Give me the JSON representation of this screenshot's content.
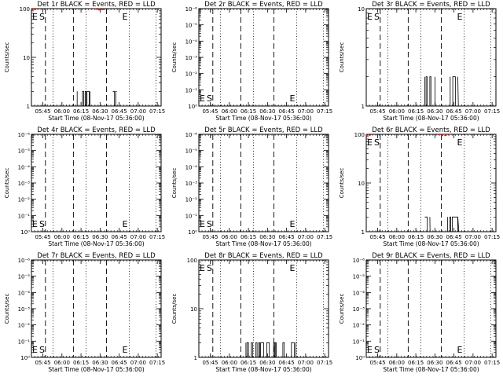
{
  "figure": {
    "bg": "#ffffff",
    "fg": "#000000",
    "lld_color": "#ff0000"
  },
  "common": {
    "x_tick_labels": [
      "05:45",
      "06:00",
      "06:15",
      "06:30",
      "06:45",
      "07:00",
      "07:15"
    ],
    "x_tick_times": [
      "05:45",
      "06:00",
      "06:15",
      "06:30",
      "06:45",
      "07:00",
      "07:15"
    ],
    "xlim": [
      "05:36",
      "07:18"
    ],
    "xlabel": "Start Time (08-Nov-17 05:36:00)",
    "ylabel": "Counts/sec",
    "marker_start": "S",
    "marker_end": "E",
    "dotted_lines": [
      "05:36",
      "05:53",
      "06:19",
      "06:53",
      "07:14"
    ],
    "dashed_lines": [
      "05:47",
      "06:09",
      "06:35"
    ]
  },
  "chart_data": [
    {
      "type": "line",
      "title": "Det 1r BLACK = Events, RED = LLD",
      "y_scale": "log",
      "ylim": [
        1,
        100
      ],
      "y_ticks": [
        {
          "v": 1,
          "label": "1"
        },
        {
          "v": 10,
          "label": "10"
        },
        {
          "v": 100,
          "label": "100"
        }
      ],
      "S_pos": "high",
      "E_pos": "high",
      "series": [
        {
          "color": "black",
          "segments": [
            [
              "06:12",
              "06:22"
            ],
            [
              "06:40",
              "06:43"
            ]
          ],
          "level_low": 1,
          "level_high": 2
        },
        {
          "color": "red",
          "segments": [
            [
              "05:36",
              "05:40"
            ],
            [
              "06:26",
              "06:34"
            ]
          ],
          "level_low": 90,
          "level_high": 100
        }
      ]
    },
    {
      "type": "line",
      "title": "Det 2r BLACK = Events, RED = LLD",
      "y_scale": "log",
      "ylim": [
        1,
        1000000
      ],
      "y_ticks": [
        {
          "v": 1,
          "label": "10⁰"
        },
        {
          "v": 10,
          "label": "10⁻¹"
        },
        {
          "v": 100,
          "label": "10⁻²"
        },
        {
          "v": 1000,
          "label": "10⁻³"
        },
        {
          "v": 10000,
          "label": "10⁻⁴"
        },
        {
          "v": 100000,
          "label": "10⁻⁵"
        },
        {
          "v": 1000000,
          "label": "10⁻⁶"
        }
      ],
      "S_pos": "low",
      "E_pos": "low",
      "series": []
    },
    {
      "type": "line",
      "title": "Det 3r BLACK = Events, RED = LLD",
      "y_scale": "log",
      "ylim": [
        1,
        10
      ],
      "y_ticks": [
        {
          "v": 1,
          "label": "1"
        },
        {
          "v": 10,
          "label": "10"
        }
      ],
      "S_pos": "high",
      "E_pos": "high",
      "series": [
        {
          "color": "black",
          "segments": [
            [
              "06:22",
              "06:30"
            ],
            [
              "06:42",
              "06:48"
            ]
          ],
          "level_low": 1,
          "level_high": 2
        }
      ]
    },
    {
      "type": "line",
      "title": "Det 4r BLACK = Events, RED = LLD",
      "y_scale": "log",
      "ylim": [
        1,
        1000000
      ],
      "y_ticks": [
        {
          "v": 1,
          "label": "10⁰"
        },
        {
          "v": 10,
          "label": "10⁻¹"
        },
        {
          "v": 100,
          "label": "10⁻²"
        },
        {
          "v": 1000,
          "label": "10⁻³"
        },
        {
          "v": 10000,
          "label": "10⁻⁴"
        },
        {
          "v": 100000,
          "label": "10⁻⁵"
        },
        {
          "v": 1000000,
          "label": "10⁻⁶"
        }
      ],
      "S_pos": "low",
      "E_pos": "low",
      "series": []
    },
    {
      "type": "line",
      "title": "Det 5r BLACK = Events, RED = LLD",
      "y_scale": "log",
      "ylim": [
        1,
        1000000
      ],
      "y_ticks": [
        {
          "v": 1,
          "label": "10⁰"
        },
        {
          "v": 10,
          "label": "10⁻¹"
        },
        {
          "v": 100,
          "label": "10⁻²"
        },
        {
          "v": 1000,
          "label": "10⁻³"
        },
        {
          "v": 10000,
          "label": "10⁻⁴"
        },
        {
          "v": 100000,
          "label": "10⁻⁵"
        },
        {
          "v": 1000000,
          "label": "10⁻⁶"
        }
      ],
      "S_pos": "low",
      "E_pos": "low",
      "series": []
    },
    {
      "type": "line",
      "title": "Det 6r BLACK = Events, RED = LLD",
      "y_scale": "log",
      "ylim": [
        1,
        100
      ],
      "y_ticks": [
        {
          "v": 1,
          "label": "1"
        },
        {
          "v": 10,
          "label": "10"
        },
        {
          "v": 100,
          "label": "100"
        }
      ],
      "S_pos": "high",
      "E_pos": "high",
      "series": [
        {
          "color": "black",
          "segments": [
            [
              "06:22",
              "06:26"
            ],
            [
              "06:40",
              "06:48"
            ]
          ],
          "level_low": 1,
          "level_high": 2
        },
        {
          "color": "red",
          "segments": [
            [
              "05:36",
              "05:40"
            ],
            [
              "06:32",
              "06:42"
            ]
          ],
          "level_low": 90,
          "level_high": 100
        }
      ]
    },
    {
      "type": "line",
      "title": "Det 7r BLACK = Events, RED = LLD",
      "y_scale": "log",
      "ylim": [
        1,
        1000000
      ],
      "y_ticks": [
        {
          "v": 1,
          "label": "10⁰"
        },
        {
          "v": 10,
          "label": "10⁻¹"
        },
        {
          "v": 100,
          "label": "10⁻²"
        },
        {
          "v": 1000,
          "label": "10⁻³"
        },
        {
          "v": 10000,
          "label": "10⁻⁴"
        },
        {
          "v": 100000,
          "label": "10⁻⁵"
        },
        {
          "v": 1000000,
          "label": "10⁻⁶"
        }
      ],
      "S_pos": "low",
      "E_pos": "low",
      "series": []
    },
    {
      "type": "line",
      "title": "Det 8r BLACK = Events, RED = LLD",
      "y_scale": "log",
      "ylim": [
        1,
        100
      ],
      "y_ticks": [
        {
          "v": 1,
          "label": "1"
        },
        {
          "v": 10,
          "label": "10"
        },
        {
          "v": 100,
          "label": "100"
        }
      ],
      "S_pos": "high",
      "E_pos": "high",
      "series": [
        {
          "color": "black",
          "segments": [
            [
              "06:13",
              "06:53"
            ]
          ],
          "level_low": 1,
          "level_high": 2
        }
      ]
    },
    {
      "type": "line",
      "title": "Det 9r BLACK = Events, RED = LLD",
      "y_scale": "log",
      "ylim": [
        1,
        1000000
      ],
      "y_ticks": [
        {
          "v": 1,
          "label": "10⁰"
        },
        {
          "v": 10,
          "label": "10⁻¹"
        },
        {
          "v": 100,
          "label": "10⁻²"
        },
        {
          "v": 1000,
          "label": "10⁻³"
        },
        {
          "v": 10000,
          "label": "10⁻⁴"
        },
        {
          "v": 100000,
          "label": "10⁻⁵"
        },
        {
          "v": 1000000,
          "label": "10⁻⁶"
        }
      ],
      "S_pos": "low",
      "E_pos": "low",
      "series": []
    }
  ]
}
